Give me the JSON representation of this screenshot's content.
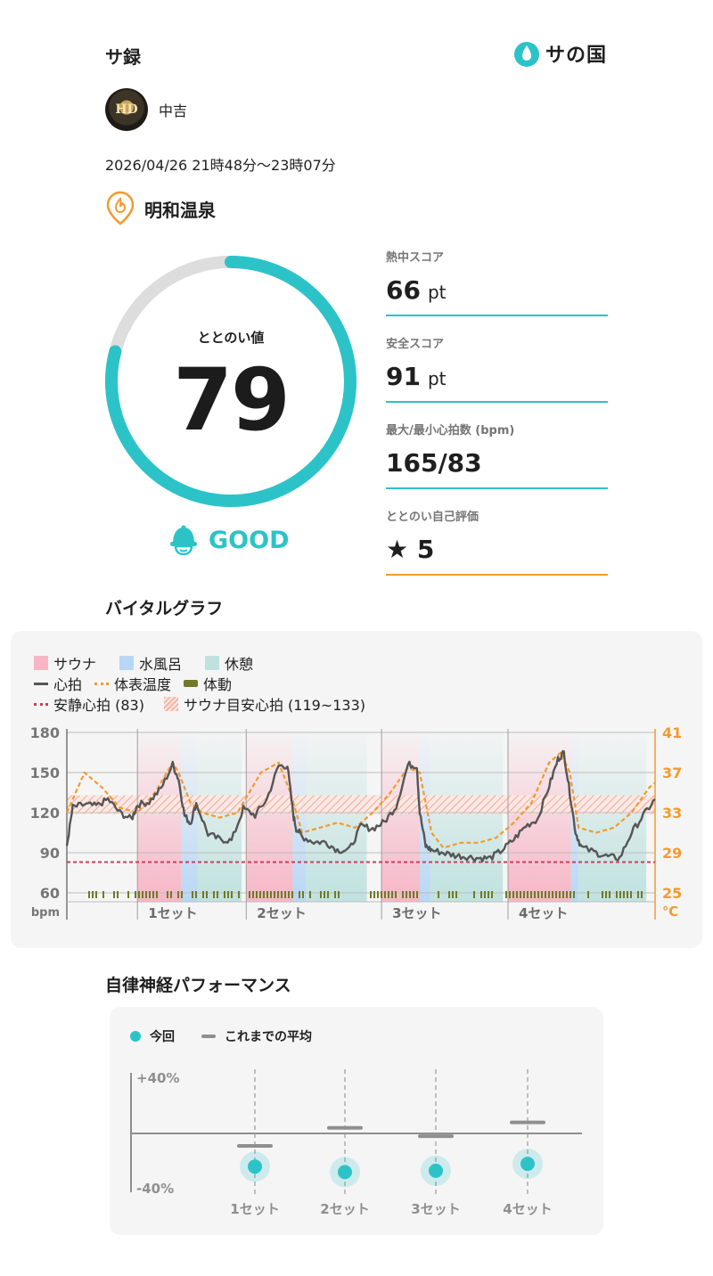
{
  "header": {
    "app_title": "サ録",
    "brand": "サの国"
  },
  "user": {
    "name": "中吉",
    "avatar_mark": "HD"
  },
  "visit": {
    "datetime": "2026/04/26 21時48分〜23時07分",
    "facility": "明和温泉"
  },
  "totonoi": {
    "label": "ととのい値",
    "value": 79,
    "max": 100,
    "rating": "GOOD"
  },
  "scores": [
    {
      "label": "熱中スコア",
      "value": "66",
      "unit": "pt"
    },
    {
      "label": "安全スコア",
      "value": "91",
      "unit": "pt"
    },
    {
      "label": "最大/最小心拍数 (bpm)",
      "value": "165/83",
      "unit": ""
    },
    {
      "label": "ととのい自己評価",
      "value": "★ 5",
      "unit": ""
    }
  ],
  "colors": {
    "accent": "#2cc3c8",
    "orange": "#f39a2f",
    "sauna": "#f7b6c6",
    "cold": "#b8d7f5",
    "rest": "#bfe2df",
    "motion": "#707a28",
    "resting": "#c7405a"
  },
  "vital": {
    "title": "バイタルグラフ",
    "legend": {
      "sauna": "サウナ",
      "cold": "水風呂",
      "rest": "休憩",
      "hr": "心拍",
      "temp": "体表温度",
      "motion": "体動",
      "resting_hr": "安静心拍 (83)",
      "target_hr": "サウナ目安心拍 (119~133)"
    },
    "y_unit": "bpm",
    "y2_unit": "℃",
    "set_labels": [
      "1セット",
      "2セット",
      "3セット",
      "4セット"
    ]
  },
  "chart_data": [
    {
      "type": "line",
      "y_ticks": [
        180,
        150,
        120,
        90,
        60
      ],
      "y2_ticks": [
        41,
        37,
        33,
        29,
        25
      ],
      "ylim": [
        60,
        180
      ],
      "y2lim": [
        25,
        41
      ],
      "resting_hr": 83,
      "target_hr_range": [
        119,
        133
      ],
      "phases": [
        {
          "type": "sauna",
          "start": 0.12,
          "end": 0.195
        },
        {
          "type": "cold",
          "start": 0.195,
          "end": 0.222
        },
        {
          "type": "rest",
          "start": 0.222,
          "end": 0.297
        },
        {
          "type": "sauna",
          "start": 0.305,
          "end": 0.384
        },
        {
          "type": "cold",
          "start": 0.384,
          "end": 0.407
        },
        {
          "type": "rest",
          "start": 0.407,
          "end": 0.51
        },
        {
          "type": "sauna",
          "start": 0.535,
          "end": 0.6
        },
        {
          "type": "cold",
          "start": 0.6,
          "end": 0.618
        },
        {
          "type": "rest",
          "start": 0.618,
          "end": 0.741
        },
        {
          "type": "sauna",
          "start": 0.75,
          "end": 0.857
        },
        {
          "type": "cold",
          "start": 0.857,
          "end": 0.87
        },
        {
          "type": "rest",
          "start": 0.87,
          "end": 0.985
        }
      ],
      "set_starts": [
        0.12,
        0.305,
        0.535,
        0.75
      ],
      "series": [
        {
          "name": "心拍",
          "x": [
            0,
            0.01,
            0.03,
            0.05,
            0.07,
            0.09,
            0.11,
            0.12,
            0.14,
            0.16,
            0.18,
            0.19,
            0.2,
            0.21,
            0.22,
            0.24,
            0.26,
            0.28,
            0.3,
            0.32,
            0.34,
            0.36,
            0.375,
            0.385,
            0.39,
            0.4,
            0.42,
            0.44,
            0.46,
            0.48,
            0.5,
            0.52,
            0.54,
            0.56,
            0.58,
            0.595,
            0.6,
            0.61,
            0.62,
            0.64,
            0.66,
            0.68,
            0.7,
            0.72,
            0.74,
            0.76,
            0.78,
            0.8,
            0.82,
            0.835,
            0.845,
            0.855,
            0.865,
            0.875,
            0.9,
            0.92,
            0.94,
            0.96,
            0.98,
            1.0
          ],
          "values": [
            95,
            124,
            126,
            125,
            130,
            120,
            115,
            126,
            128,
            138,
            156,
            145,
            118,
            112,
            127,
            104,
            100,
            99,
            123,
            118,
            130,
            155,
            155,
            118,
            108,
            102,
            98,
            98,
            92,
            92,
            110,
            108,
            113,
            125,
            156,
            155,
            120,
            95,
            92,
            90,
            88,
            87,
            86,
            86,
            92,
            100,
            110,
            115,
            140,
            160,
            165,
            135,
            105,
            94,
            90,
            87,
            86,
            105,
            118,
            130
          ]
        },
        {
          "name": "体表温度",
          "x": [
            0,
            0.03,
            0.06,
            0.09,
            0.12,
            0.15,
            0.18,
            0.19,
            0.21,
            0.23,
            0.26,
            0.29,
            0.31,
            0.33,
            0.36,
            0.38,
            0.4,
            0.43,
            0.46,
            0.49,
            0.52,
            0.55,
            0.58,
            0.6,
            0.62,
            0.64,
            0.67,
            0.7,
            0.73,
            0.76,
            0.79,
            0.82,
            0.84,
            0.855,
            0.87,
            0.9,
            0.93,
            0.96,
            0.99,
            1.0
          ],
          "values": [
            33,
            37,
            35.5,
            33.5,
            33,
            35,
            38,
            37,
            34,
            33,
            32.5,
            33,
            35,
            37,
            38,
            35,
            31,
            31.5,
            32,
            31.5,
            33,
            35,
            37.5,
            37,
            31,
            29.5,
            30,
            30,
            30.5,
            32,
            34,
            38,
            39,
            37,
            31.5,
            31,
            31.5,
            33,
            35.5,
            36
          ]
        }
      ]
    },
    {
      "type": "scatter",
      "ylim": [
        -40,
        40
      ],
      "y_labels": [
        "+40%",
        "-40%"
      ],
      "categories": [
        "1セット",
        "2セット",
        "3セット",
        "4セット"
      ],
      "series": [
        {
          "name": "今回",
          "values": [
            -24,
            -28,
            -27,
            -22
          ]
        },
        {
          "name": "これまでの平均",
          "values": [
            -9,
            4,
            -2,
            8
          ]
        }
      ]
    }
  ],
  "autonomic": {
    "title": "自律神経パフォーマンス",
    "legend": {
      "current": "今回",
      "average": "これまでの平均"
    }
  }
}
